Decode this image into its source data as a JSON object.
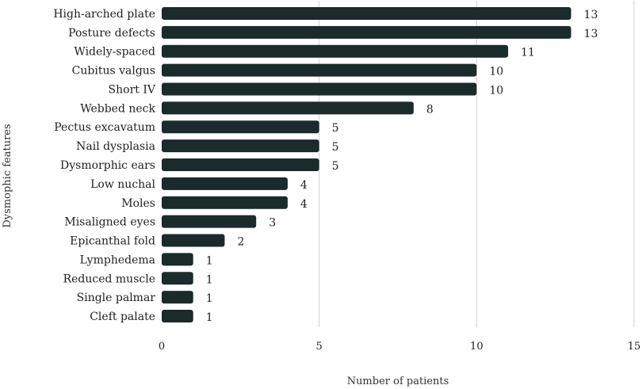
{
  "chart_data": {
    "type": "bar",
    "orientation": "horizontal",
    "categories": [
      "High-arched plate",
      "Posture defects",
      "Widely-spaced",
      "Cubitus valgus",
      "Short IV",
      "Webbed neck",
      "Pectus excavatum",
      "Nail dysplasia",
      "Dysmorphic ears",
      "Low nuchal",
      "Moles",
      "Misaligned eyes",
      "Epicanthal fold",
      "Lymphedema",
      "Reduced muscle",
      "Single palmar",
      "Cleft palate"
    ],
    "values": [
      13,
      13,
      11,
      10,
      10,
      8,
      5,
      5,
      5,
      4,
      4,
      3,
      2,
      1,
      1,
      1,
      1
    ],
    "xlabel": "Number of patients",
    "ylabel": "Dysmophic features",
    "xlim": [
      0,
      15
    ],
    "xticks": [
      "0",
      "5",
      "10",
      "15"
    ],
    "grid": "vertical",
    "data_labels": true,
    "bar_color": "#1b2a2a",
    "grid_color": "#d0d0d0"
  }
}
